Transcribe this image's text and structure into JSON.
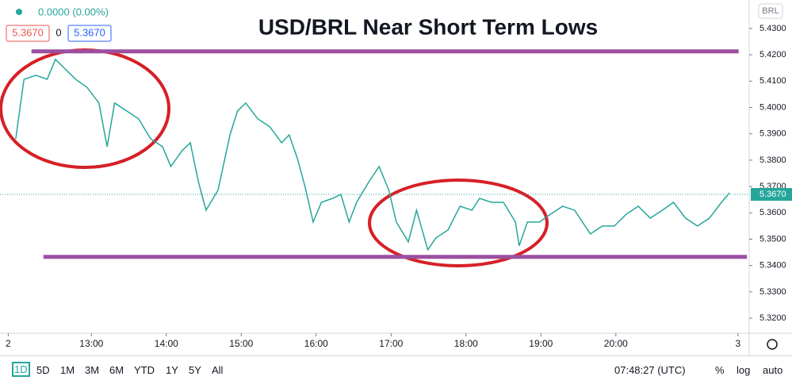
{
  "chart_data": {
    "type": "line",
    "title": "USD/BRL Near Short Term Lows",
    "x": [
      11.99,
      12.1,
      12.26,
      12.41,
      12.52,
      12.63,
      12.79,
      12.94,
      13.1,
      13.21,
      13.31,
      13.47,
      13.63,
      13.79,
      13.95,
      14.06,
      14.21,
      14.32,
      14.43,
      14.53,
      14.69,
      14.85,
      14.95,
      15.06,
      15.22,
      15.38,
      15.54,
      15.64,
      15.75,
      15.85,
      15.96,
      16.07,
      16.22,
      16.33,
      16.44,
      16.54,
      16.7,
      16.84,
      16.97,
      17.07,
      17.23,
      17.34,
      17.49,
      17.6,
      17.76,
      17.92,
      18.08,
      18.18,
      18.34,
      18.5,
      18.66,
      18.71,
      18.82,
      18.98,
      19.13,
      19.29,
      19.45,
      19.66,
      19.82,
      19.98,
      20.14,
      20.3,
      20.46,
      20.62,
      20.77,
      20.93,
      21.09,
      21.25,
      21.41,
      21.52
    ],
    "series": [
      {
        "color": "#26a69a",
        "values": [
          5.3881,
          5.4107,
          5.4122,
          5.4107,
          5.4183,
          5.4152,
          5.4107,
          5.4077,
          5.4017,
          5.3851,
          5.4017,
          5.3987,
          5.3957,
          5.3881,
          5.3851,
          5.3776,
          5.3836,
          5.3866,
          5.3716,
          5.361,
          5.3686,
          5.3896,
          5.3987,
          5.4017,
          5.3957,
          5.3927,
          5.3866,
          5.3896,
          5.3806,
          5.3701,
          5.3565,
          5.364,
          5.3655,
          5.367,
          5.3565,
          5.364,
          5.3716,
          5.3776,
          5.3686,
          5.3565,
          5.349,
          5.361,
          5.346,
          5.3505,
          5.3535,
          5.3625,
          5.361,
          5.3655,
          5.364,
          5.364,
          5.3565,
          5.3475,
          5.3565,
          5.3565,
          5.3595,
          5.3625,
          5.361,
          5.352,
          5.355,
          5.355,
          5.3595,
          5.3625,
          5.358,
          5.361,
          5.364,
          5.358,
          5.355,
          5.358,
          5.364,
          5.3676
        ]
      }
    ],
    "xlim": [
      11.78,
      21.78
    ],
    "xticks": [
      {
        "value": 11.89,
        "label": "2"
      },
      {
        "value": 13,
        "label": "13:00"
      },
      {
        "value": 14,
        "label": "14:00"
      },
      {
        "value": 15,
        "label": "15:00"
      },
      {
        "value": 16,
        "label": "16:00"
      },
      {
        "value": 17,
        "label": "17:00"
      },
      {
        "value": 18,
        "label": "18:00"
      },
      {
        "value": 19,
        "label": "19:00"
      },
      {
        "value": 20,
        "label": "20:00"
      },
      {
        "value": 21.63,
        "label": "3"
      }
    ],
    "ylim": [
      5.3143,
      5.4408
    ],
    "yticks": [
      {
        "value": 5.32,
        "label": "5.3200"
      },
      {
        "value": 5.33,
        "label": "5.3300"
      },
      {
        "value": 5.34,
        "label": "5.3400"
      },
      {
        "value": 5.35,
        "label": "5.3500"
      },
      {
        "value": 5.36,
        "label": "5.3600"
      },
      {
        "value": 5.37,
        "label": "5.3700"
      },
      {
        "value": 5.38,
        "label": "5.3800"
      },
      {
        "value": 5.39,
        "label": "5.3900"
      },
      {
        "value": 5.4,
        "label": "5.4000"
      },
      {
        "value": 5.41,
        "label": "5.4100"
      },
      {
        "value": 5.42,
        "label": "5.4200"
      },
      {
        "value": 5.43,
        "label": "5.4300"
      }
    ],
    "levels": [
      {
        "value": 5.4213,
        "x": [
          12.2,
          21.64
        ],
        "color": "#9c4fa0"
      },
      {
        "value": 5.3433,
        "x": [
          12.36,
          21.75
        ],
        "color": "#9c4fa0"
      }
    ],
    "last": {
      "value": 5.367,
      "label": "5.3670",
      "color": "#26a69a"
    },
    "currency": "BRL"
  },
  "header": {
    "change": "0.0000 (0.00%)",
    "bid": "5.3670",
    "spread": "0",
    "ask": "5.3670"
  },
  "toolbar": {
    "ranges": [
      "1D",
      "5D",
      "1M",
      "3M",
      "6M",
      "YTD",
      "1Y",
      "5Y",
      "All"
    ],
    "clock": "07:48:27 (UTC)",
    "options": [
      "%",
      "log",
      "auto"
    ]
  }
}
